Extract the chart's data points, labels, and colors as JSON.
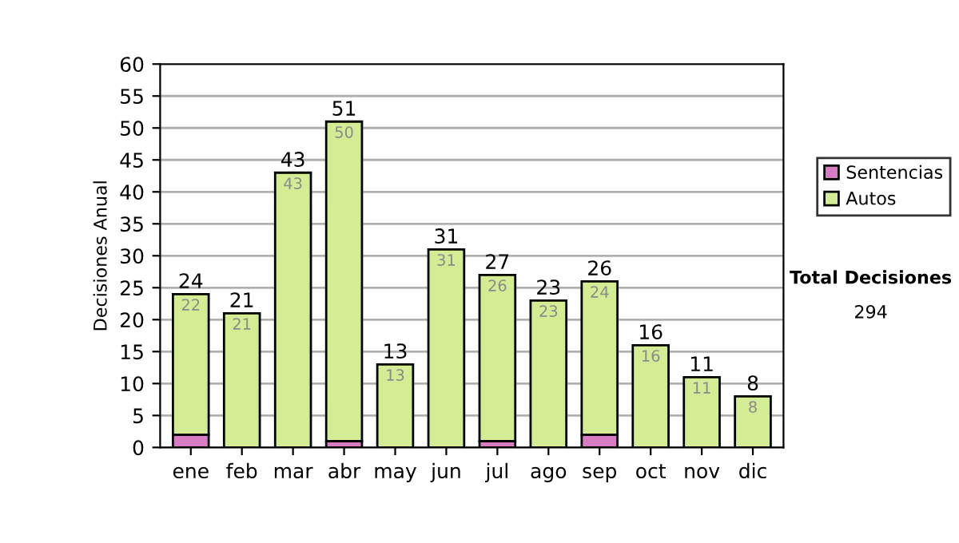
{
  "chart_data": {
    "type": "bar",
    "ylabel": "Decisiones Anual",
    "stacked": true,
    "categories": [
      "ene",
      "feb",
      "mar",
      "abr",
      "may",
      "jun",
      "jul",
      "ago",
      "sep",
      "oct",
      "nov",
      "dic"
    ],
    "series": [
      {
        "name": "Sentencias",
        "color": "#d87cc4",
        "values": [
          2,
          0,
          0,
          1,
          0,
          0,
          1,
          0,
          2,
          0,
          0,
          0
        ]
      },
      {
        "name": "Autos",
        "color": "#d4ec94",
        "values": [
          22,
          21,
          43,
          50,
          13,
          31,
          26,
          23,
          24,
          16,
          11,
          8
        ],
        "value_labels": [
          "22",
          "21",
          "43",
          "50",
          "13",
          "31",
          "26",
          "23",
          "24",
          "16",
          "11",
          "8"
        ]
      }
    ],
    "totals": [
      "24",
      "21",
      "43",
      "51",
      "13",
      "31",
      "27",
      "23",
      "26",
      "16",
      "11",
      "8"
    ],
    "ylim": [
      0,
      60
    ],
    "yticks": [
      0,
      5,
      10,
      15,
      20,
      25,
      30,
      35,
      40,
      45,
      50,
      55,
      60
    ],
    "grid": "y",
    "legend": "right",
    "annotations": [
      "Total Decisiones",
      "294"
    ]
  }
}
